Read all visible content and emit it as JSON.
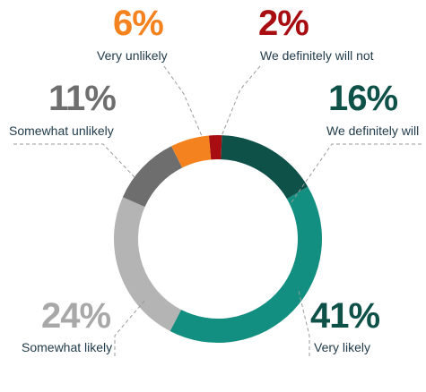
{
  "chart_data": {
    "type": "pie",
    "variant": "donut",
    "title": "",
    "legend": "none",
    "slices": [
      {
        "label": "We definitely will not",
        "value": 2,
        "value_label": "2%",
        "color": "#a80d12"
      },
      {
        "label": "We definitely will",
        "value": 16,
        "value_label": "16%",
        "color": "#0e5149"
      },
      {
        "label": "Very likely",
        "value": 41,
        "value_label": "41%",
        "color": "#138f81"
      },
      {
        "label": "Somewhat likely",
        "value": 24,
        "value_label": "24%",
        "color": "#b4b4b4"
      },
      {
        "label": "Somewhat unlikely",
        "value": 11,
        "value_label": "11%",
        "color": "#6e6e6e"
      },
      {
        "label": "Very unlikely",
        "value": 6,
        "value_label": "6%",
        "color": "#f4831f"
      }
    ]
  }
}
